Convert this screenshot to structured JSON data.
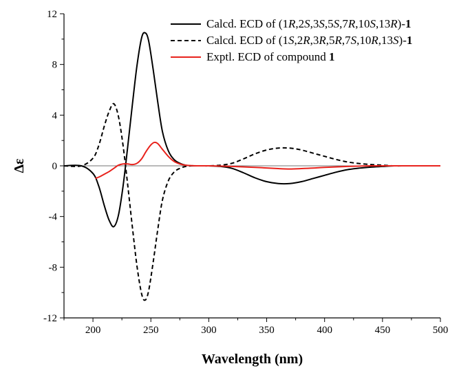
{
  "chart_data": {
    "type": "line",
    "xlabel": "Wavelength (nm)",
    "ylabel": "Δε",
    "xlim": [
      175,
      500
    ],
    "ylim": [
      -12,
      12
    ],
    "xticks": [
      200,
      250,
      300,
      350,
      400,
      450,
      500
    ],
    "yticks": [
      -12,
      -8,
      -4,
      0,
      4,
      8,
      12
    ],
    "legend_position": "top-right",
    "series": [
      {
        "name": "Calcd. ECD of (1R,2S,3S,5S,7R,10S,13R)-1",
        "color": "#000000",
        "dash": "solid",
        "x": [
          175,
          190,
          200,
          205,
          210,
          214,
          218,
          222,
          226,
          230,
          234,
          238,
          242,
          245,
          248,
          252,
          256,
          260,
          265,
          270,
          275,
          280,
          285,
          290,
          295,
          300,
          310,
          320,
          330,
          340,
          350,
          360,
          370,
          380,
          390,
          400,
          410,
          420,
          430,
          440,
          450,
          460,
          470,
          480,
          490,
          500
        ],
        "y": [
          0,
          0,
          -0.6,
          -1.6,
          -3.2,
          -4.3,
          -4.8,
          -3.9,
          -1.6,
          1.5,
          4.8,
          7.9,
          10.1,
          10.5,
          9.9,
          7.6,
          5.0,
          2.7,
          1.2,
          0.5,
          0.2,
          0.05,
          0,
          0,
          0,
          0,
          -0.05,
          -0.2,
          -0.55,
          -0.95,
          -1.25,
          -1.4,
          -1.4,
          -1.25,
          -1.0,
          -0.75,
          -0.5,
          -0.3,
          -0.18,
          -0.1,
          -0.05,
          0,
          0,
          0,
          0,
          0
        ]
      },
      {
        "name": "Calcd. ECD of (1S,2R,3R,5R,7S,10R,13S)-1",
        "color": "#000000",
        "dash": "dashed",
        "x": [
          175,
          190,
          200,
          205,
          210,
          214,
          218,
          222,
          226,
          230,
          234,
          238,
          242,
          245,
          248,
          252,
          256,
          260,
          265,
          270,
          275,
          280,
          285,
          290,
          295,
          300,
          310,
          320,
          330,
          340,
          350,
          360,
          370,
          380,
          390,
          400,
          410,
          420,
          430,
          440,
          450,
          460,
          470,
          480,
          490,
          500
        ],
        "y": [
          0,
          0,
          0.6,
          1.6,
          3.2,
          4.3,
          4.9,
          3.9,
          1.6,
          -1.5,
          -4.8,
          -7.9,
          -10.1,
          -10.6,
          -9.9,
          -7.6,
          -5.0,
          -2.7,
          -1.2,
          -0.5,
          -0.2,
          -0.05,
          0,
          0,
          0,
          0,
          0.05,
          0.2,
          0.55,
          0.95,
          1.25,
          1.4,
          1.4,
          1.25,
          1.0,
          0.75,
          0.5,
          0.3,
          0.18,
          0.1,
          0.05,
          0,
          0,
          0,
          0,
          0
        ]
      },
      {
        "name": "Exptl. ECD of compound 1",
        "color": "#e8221c",
        "dash": "solid",
        "x": [
          202,
          206,
          210,
          214,
          218,
          222,
          226,
          230,
          234,
          238,
          242,
          246,
          250,
          253,
          256,
          260,
          265,
          270,
          275,
          280,
          290,
          300,
          320,
          340,
          360,
          370,
          380,
          390,
          400,
          420,
          440,
          460,
          480,
          500
        ],
        "y": [
          -1.0,
          -0.85,
          -0.65,
          -0.45,
          -0.2,
          0.05,
          0.15,
          0.15,
          0.1,
          0.2,
          0.55,
          1.15,
          1.65,
          1.85,
          1.75,
          1.3,
          0.75,
          0.35,
          0.15,
          0.05,
          0,
          0,
          -0.05,
          -0.12,
          -0.22,
          -0.25,
          -0.22,
          -0.18,
          -0.12,
          -0.05,
          0,
          0,
          0,
          0
        ]
      }
    ],
    "legend": [
      {
        "prefix": "Calcd. ECD of (",
        "config": [
          [
            "1",
            "R"
          ],
          [
            "2",
            "S"
          ],
          [
            "3",
            "S"
          ],
          [
            "5",
            "S"
          ],
          [
            "7",
            "R"
          ],
          [
            "10",
            "S"
          ],
          [
            "13",
            "R"
          ]
        ],
        "close": ")-",
        "bold": "1",
        "style": "solid",
        "color": "#000000"
      },
      {
        "prefix": "Calcd. ECD of (",
        "config": [
          [
            "1",
            "S"
          ],
          [
            "2",
            "R"
          ],
          [
            "3",
            "R"
          ],
          [
            "5",
            "R"
          ],
          [
            "7",
            "S"
          ],
          [
            "10",
            "R"
          ],
          [
            "13",
            "S"
          ]
        ],
        "close": ")-",
        "bold": "1",
        "style": "dashed",
        "color": "#000000"
      },
      {
        "prefix": "Exptl. ECD of compound ",
        "config": [],
        "close": "",
        "bold": "1",
        "style": "solid",
        "color": "#e8221c"
      }
    ]
  }
}
